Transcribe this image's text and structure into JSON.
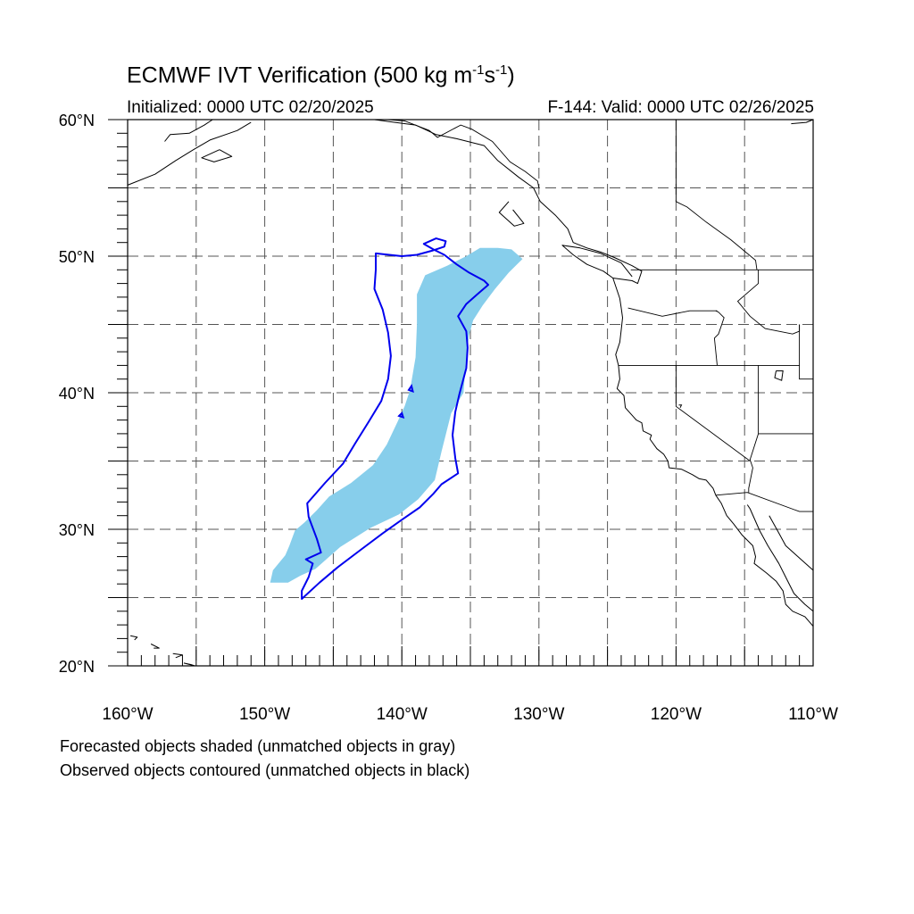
{
  "title": {
    "main": "ECMWF IVT Verification (500 kg m",
    "exp1": "-1",
    "mid": "s",
    "exp2": "-1",
    "end": ")"
  },
  "subtitle": {
    "initialized": "Initialized: 0000 UTC 02/20/2025",
    "valid": "F-144: Valid: 0000 UTC 02/26/2025"
  },
  "footer": {
    "line1": "Forecasted objects shaded (unmatched objects in gray)",
    "line2": "Observed objects contoured (unmatched objects in black)"
  },
  "map": {
    "lon_range": [
      -160,
      -110
    ],
    "lat_range": [
      20,
      60
    ],
    "lat_labels": [
      {
        "lat": 60,
        "text": "60°N"
      },
      {
        "lat": 50,
        "text": "50°N"
      },
      {
        "lat": 40,
        "text": "40°N"
      },
      {
        "lat": 30,
        "text": "30°N"
      },
      {
        "lat": 20,
        "text": "20°N"
      }
    ],
    "lon_labels": [
      {
        "lon": -160,
        "text": "160°W"
      },
      {
        "lon": -150,
        "text": "150°W"
      },
      {
        "lon": -140,
        "text": "140°W"
      },
      {
        "lon": -130,
        "text": "130°W"
      },
      {
        "lon": -120,
        "text": "120°W"
      },
      {
        "lon": -110,
        "text": "110°W"
      }
    ],
    "grid_step_deg": 5,
    "colors": {
      "forecast_fill": "#87ceeb",
      "observed_contour": "#0000ee",
      "coast": "#000000",
      "grid": "#555555"
    },
    "forecast_object": [
      [
        -131.2,
        49.8
      ],
      [
        -132,
        50.5
      ],
      [
        -133,
        50.6
      ],
      [
        -134.3,
        50.6
      ],
      [
        -135.3,
        50
      ],
      [
        -136.7,
        49.3
      ],
      [
        -138.3,
        48.6
      ],
      [
        -138.9,
        47.2
      ],
      [
        -138.9,
        45
      ],
      [
        -139,
        42.6
      ],
      [
        -139.4,
        40.2
      ],
      [
        -139.8,
        39
      ],
      [
        -140.3,
        37.9
      ],
      [
        -141.1,
        36.2
      ],
      [
        -142.1,
        34.7
      ],
      [
        -143.7,
        33.4
      ],
      [
        -145.3,
        32.4
      ],
      [
        -146.2,
        31.4
      ],
      [
        -147.1,
        30.5
      ],
      [
        -147.8,
        29.9
      ],
      [
        -148.2,
        28.8
      ],
      [
        -148.5,
        28.1
      ],
      [
        -149.4,
        27
      ],
      [
        -149.6,
        26.1
      ],
      [
        -148.3,
        26.1
      ],
      [
        -147.4,
        26.6
      ],
      [
        -146.3,
        27.1
      ],
      [
        -144.5,
        28.7
      ],
      [
        -142.3,
        30.1
      ],
      [
        -140.2,
        31.1
      ],
      [
        -138.8,
        32.2
      ],
      [
        -137.6,
        33.6
      ],
      [
        -137.1,
        35.7
      ],
      [
        -136.4,
        38.5
      ],
      [
        -135.5,
        40
      ],
      [
        -135.3,
        42.7
      ],
      [
        -135.1,
        44.2
      ],
      [
        -134.8,
        45.3
      ],
      [
        -134.1,
        46.4
      ],
      [
        -133.2,
        47.6
      ],
      [
        -132.2,
        48.8
      ]
    ],
    "observed_object": [
      [
        -141.9,
        50.2
      ],
      [
        -140,
        50
      ],
      [
        -138.9,
        50.1
      ],
      [
        -137.8,
        50.4
      ],
      [
        -136.9,
        50.7
      ],
      [
        -136.8,
        51.1
      ],
      [
        -137.5,
        51.3
      ],
      [
        -138.4,
        50.9
      ],
      [
        -137.7,
        50.5
      ],
      [
        -136.9,
        50.1
      ],
      [
        -136,
        49.4
      ],
      [
        -135.1,
        48.8
      ],
      [
        -134,
        48.2
      ],
      [
        -133.7,
        47.9
      ],
      [
        -134.5,
        47.2
      ],
      [
        -135.3,
        46.5
      ],
      [
        -135.9,
        45.6
      ],
      [
        -135.3,
        44.5
      ],
      [
        -135.2,
        43.3
      ],
      [
        -135.3,
        41.8
      ],
      [
        -135.8,
        39.9
      ],
      [
        -136.1,
        38.6
      ],
      [
        -136.3,
        36.9
      ],
      [
        -136.1,
        35.2
      ],
      [
        -135.9,
        34.1
      ],
      [
        -137.1,
        33.3
      ],
      [
        -137.7,
        32.6
      ],
      [
        -138.7,
        31.6
      ],
      [
        -140,
        30.7
      ],
      [
        -141.4,
        29.7
      ],
      [
        -143,
        28.5
      ],
      [
        -144.7,
        27.2
      ],
      [
        -146,
        26.1
      ],
      [
        -147.3,
        24.9
      ],
      [
        -147.3,
        25.5
      ],
      [
        -146.8,
        26.5
      ],
      [
        -146.5,
        27.5
      ],
      [
        -147,
        27.8
      ],
      [
        -145.9,
        28.3
      ],
      [
        -146.2,
        29.3
      ],
      [
        -146.8,
        30.9
      ],
      [
        -146.9,
        31.9
      ],
      [
        -145.6,
        33.4
      ],
      [
        -144.3,
        34.8
      ],
      [
        -143.4,
        36.3
      ],
      [
        -142.4,
        37.9
      ],
      [
        -141.5,
        39.4
      ],
      [
        -141,
        41
      ],
      [
        -140.8,
        42.7
      ],
      [
        -141,
        44.4
      ],
      [
        -141.4,
        46.1
      ],
      [
        -142,
        47.6
      ],
      [
        -141.9,
        49
      ]
    ],
    "observed_small": [
      [
        [
          -139.5,
          40.2
        ],
        [
          -139.3,
          40.5
        ],
        [
          -139.2,
          40.1
        ]
      ],
      [
        [
          -140.2,
          38.3
        ],
        [
          -140,
          38.5
        ],
        [
          -139.9,
          38.2
        ]
      ]
    ],
    "coastlines": [
      [
        [
          -117.1,
          32.5
        ],
        [
          -117.3,
          33
        ],
        [
          -117.8,
          33.6
        ],
        [
          -118.3,
          33.7
        ],
        [
          -118.8,
          34
        ],
        [
          -119.6,
          34.4
        ],
        [
          -120.5,
          34.5
        ],
        [
          -120.6,
          35
        ],
        [
          -120.9,
          35.5
        ],
        [
          -121.4,
          35.9
        ],
        [
          -121.9,
          36.6
        ],
        [
          -121.8,
          36.9
        ],
        [
          -122.4,
          37.2
        ],
        [
          -122.5,
          37.8
        ],
        [
          -122.9,
          38
        ],
        [
          -123.7,
          38.9
        ],
        [
          -123.8,
          39.8
        ],
        [
          -124.3,
          40.3
        ],
        [
          -124.1,
          41
        ],
        [
          -124.2,
          42
        ],
        [
          -124.4,
          42.8
        ],
        [
          -124.1,
          43.7
        ],
        [
          -124,
          44.6
        ],
        [
          -123.9,
          45.5
        ],
        [
          -124,
          46.2
        ],
        [
          -124.1,
          46.9
        ],
        [
          -124.6,
          48.4
        ],
        [
          -123.2,
          48.2
        ],
        [
          -122.8,
          48
        ],
        [
          -122.5,
          48.9
        ],
        [
          -123.2,
          49.3
        ],
        [
          -124.5,
          49.9
        ],
        [
          -125.5,
          50.3
        ],
        [
          -126.5,
          50.6
        ],
        [
          -127.5,
          51
        ],
        [
          -127.9,
          52
        ],
        [
          -128.8,
          53
        ],
        [
          -129.9,
          54
        ],
        [
          -130.4,
          55
        ],
        [
          -131.5,
          55.8
        ],
        [
          -133,
          57
        ],
        [
          -134,
          58.1
        ],
        [
          -136,
          58.6
        ],
        [
          -137.5,
          58.9
        ],
        [
          -139,
          59.6
        ],
        [
          -140.5,
          59.8
        ],
        [
          -142,
          60
        ]
      ],
      [
        [
          -124.6,
          48.4
        ],
        [
          -125.3,
          48.9
        ],
        [
          -126.5,
          49.4
        ],
        [
          -127.5,
          50.1
        ],
        [
          -128.3,
          50.8
        ],
        [
          -127,
          50.6
        ],
        [
          -125.5,
          50.2
        ],
        [
          -124,
          49.5
        ],
        [
          -123.2,
          48.5
        ]
      ],
      [
        [
          -132.2,
          54
        ],
        [
          -132.9,
          53.2
        ],
        [
          -131.8,
          52.2
        ],
        [
          -131.1,
          52.4
        ],
        [
          -131.9,
          53.4
        ]
      ],
      [
        [
          -110,
          60
        ],
        [
          -110.5,
          59.8
        ],
        [
          -111.6,
          59.7
        ]
      ],
      [
        [
          -160,
          55.2
        ],
        [
          -158,
          56
        ],
        [
          -156.5,
          57
        ],
        [
          -155.2,
          57.8
        ],
        [
          -154,
          58.5
        ],
        [
          -152,
          59.2
        ],
        [
          -151,
          59.8
        ]
      ],
      [
        [
          -157.3,
          58.4
        ],
        [
          -156.9,
          58.9
        ],
        [
          -155.5,
          59
        ],
        [
          -154.4,
          59.6
        ],
        [
          -153.8,
          60
        ]
      ],
      [
        [
          -153.3,
          57.8
        ],
        [
          -152.4,
          57.3
        ],
        [
          -153.7,
          56.9
        ],
        [
          -154.6,
          57.2
        ],
        [
          -153.3,
          57.8
        ]
      ],
      [
        [
          -117.1,
          32.5
        ],
        [
          -116.7,
          31.9
        ],
        [
          -116.3,
          31
        ],
        [
          -115.8,
          30.4
        ],
        [
          -115.2,
          29.6
        ],
        [
          -114.4,
          28.8
        ],
        [
          -114.2,
          28
        ],
        [
          -114.3,
          27.5
        ],
        [
          -113.4,
          26.8
        ],
        [
          -112.7,
          26.2
        ],
        [
          -112.2,
          25.5
        ],
        [
          -112,
          24.5
        ],
        [
          -111.5,
          24
        ],
        [
          -110.6,
          23.6
        ],
        [
          -110,
          22.9
        ],
        [
          -109.5,
          23.2
        ],
        [
          -110,
          24
        ],
        [
          -110.6,
          24.5
        ],
        [
          -111.4,
          25.3
        ],
        [
          -111.9,
          26.3
        ],
        [
          -112.5,
          27.5
        ],
        [
          -113.3,
          28.8
        ],
        [
          -113.9,
          29.9
        ],
        [
          -114.6,
          31.5
        ],
        [
          -114.8,
          31.8
        ]
      ],
      [
        [
          -110,
          27
        ],
        [
          -111,
          27.9
        ],
        [
          -112,
          28.8
        ],
        [
          -112.6,
          29.9
        ],
        [
          -113.2,
          31
        ]
      ],
      [
        [
          -155.9,
          20.2
        ],
        [
          -155.1,
          19.3
        ],
        [
          -155.4,
          20.1
        ],
        [
          -155.9,
          20.2
        ]
      ],
      [
        [
          -156.7,
          20.9
        ],
        [
          -156,
          20.8
        ],
        [
          -156.5,
          20.6
        ]
      ],
      [
        [
          -158.3,
          21.6
        ],
        [
          -157.7,
          21.3
        ],
        [
          -158.1,
          21.3
        ]
      ],
      [
        [
          -159.8,
          22.2
        ],
        [
          -159.3,
          22.1
        ],
        [
          -159.5,
          21.9
        ]
      ]
    ],
    "borders": [
      [
        [
          -123.3,
          49
        ],
        [
          -110,
          49
        ]
      ],
      [
        [
          -124.2,
          42
        ],
        [
          -111,
          42
        ]
      ],
      [
        [
          -120,
          42
        ],
        [
          -120,
          39
        ],
        [
          -114.6,
          35
        ]
      ],
      [
        [
          -111,
          45
        ],
        [
          -111,
          41
        ],
        [
          -110,
          41
        ]
      ],
      [
        [
          -117.1,
          46
        ],
        [
          -116.9,
          45.9
        ],
        [
          -116.5,
          45.5
        ],
        [
          -116.9,
          44.3
        ],
        [
          -117.2,
          44
        ],
        [
          -117,
          42
        ]
      ],
      [
        [
          -123.5,
          46.2
        ],
        [
          -121,
          45.6
        ],
        [
          -119,
          46
        ],
        [
          -117,
          46
        ]
      ],
      [
        [
          -114,
          49
        ],
        [
          -114,
          48
        ],
        [
          -115.5,
          46.7
        ],
        [
          -114.6,
          45.6
        ],
        [
          -113.5,
          44.7
        ],
        [
          -111.5,
          44.3
        ],
        [
          -111,
          44.5
        ],
        [
          -111,
          45
        ]
      ],
      [
        [
          -114,
          42
        ],
        [
          -114,
          37
        ],
        [
          -114.6,
          35.1
        ],
        [
          -114.4,
          34.5
        ],
        [
          -114.7,
          33
        ],
        [
          -114.7,
          32.7
        ]
      ],
      [
        [
          -117.1,
          32.5
        ],
        [
          -114.8,
          32.7
        ],
        [
          -111,
          31.3
        ],
        [
          -110,
          31.3
        ]
      ],
      [
        [
          -114,
          37
        ],
        [
          -110,
          37
        ]
      ],
      [
        [
          -120,
          60
        ],
        [
          -120,
          54
        ],
        [
          -119.2,
          53.6
        ],
        [
          -117.8,
          52.5
        ],
        [
          -116,
          51.2
        ],
        [
          -114.2,
          49.7
        ],
        [
          -114.1,
          49
        ]
      ],
      [
        [
          -141,
          60
        ],
        [
          -139.8,
          59.9
        ],
        [
          -138,
          59.2
        ],
        [
          -137.4,
          58.7
        ],
        [
          -135.7,
          59.6
        ],
        [
          -134.9,
          59.3
        ],
        [
          -133.4,
          58.4
        ],
        [
          -132.1,
          56.9
        ],
        [
          -131,
          56.2
        ],
        [
          -130.1,
          55.5
        ],
        [
          -130,
          55
        ]
      ]
    ],
    "lakes": [
      [
        [
          -112.7,
          41.6
        ],
        [
          -112.2,
          41.6
        ],
        [
          -112.3,
          40.9
        ],
        [
          -112.8,
          41.1
        ],
        [
          -112.7,
          41.6
        ]
      ],
      [
        [
          -119.8,
          39.1
        ],
        [
          -119.6,
          39.1
        ],
        [
          -119.7,
          38.9
        ]
      ]
    ]
  }
}
